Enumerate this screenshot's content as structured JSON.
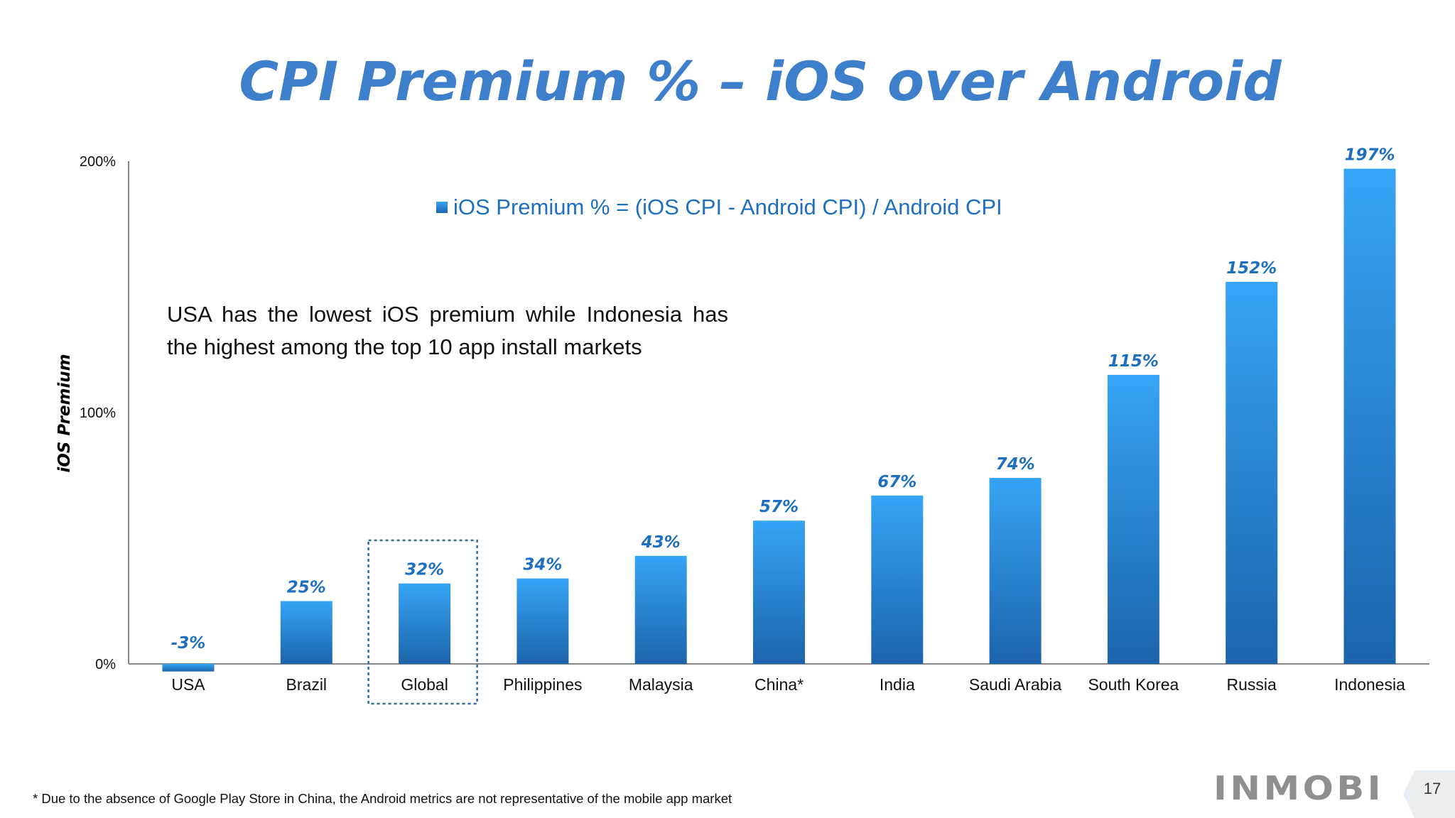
{
  "slide": {
    "title": "CPI Premium % – iOS over Android",
    "callout_text": "USA has the lowest iOS premium while Indonesia has the highest among the top 10 app install markets",
    "footnote": "* Due to the absence of Google Play Store in China, the Android metrics are not representative of the mobile app market",
    "logo_text": "INMOBI",
    "page_number": "17"
  },
  "colors": {
    "title": "#3d7fcb",
    "bar_top": "#36a4f5",
    "bar_bottom": "#1c64ab",
    "data_label": "#1f6fc0",
    "legend_text": "#1f6fc0",
    "axis": "#888888",
    "highlight_box": "#2d6aa8",
    "logo": "#8f8f8f"
  },
  "chart_data": {
    "type": "bar",
    "ylabel": "iOS Premium",
    "legend_label": "iOS Premium % = (iOS CPI - Android CPI) / Android CPI",
    "legend_position": "top-center",
    "categories": [
      "USA",
      "Brazil",
      "Global",
      "Philippines",
      "Malaysia",
      "China*",
      "India",
      "Saudi Arabia",
      "South Korea",
      "Russia",
      "Indonesia"
    ],
    "values": [
      -3,
      25,
      32,
      34,
      43,
      57,
      67,
      74,
      115,
      152,
      197
    ],
    "data_labels": [
      "-3%",
      "25%",
      "32%",
      "34%",
      "43%",
      "57%",
      "67%",
      "74%",
      "115%",
      "152%",
      "197%"
    ],
    "yticks": [
      0,
      100,
      200
    ],
    "ytick_labels": [
      "0%",
      "100%",
      "200%"
    ],
    "ylim": [
      0,
      200
    ],
    "grid": false,
    "highlighted_category": "Global"
  }
}
